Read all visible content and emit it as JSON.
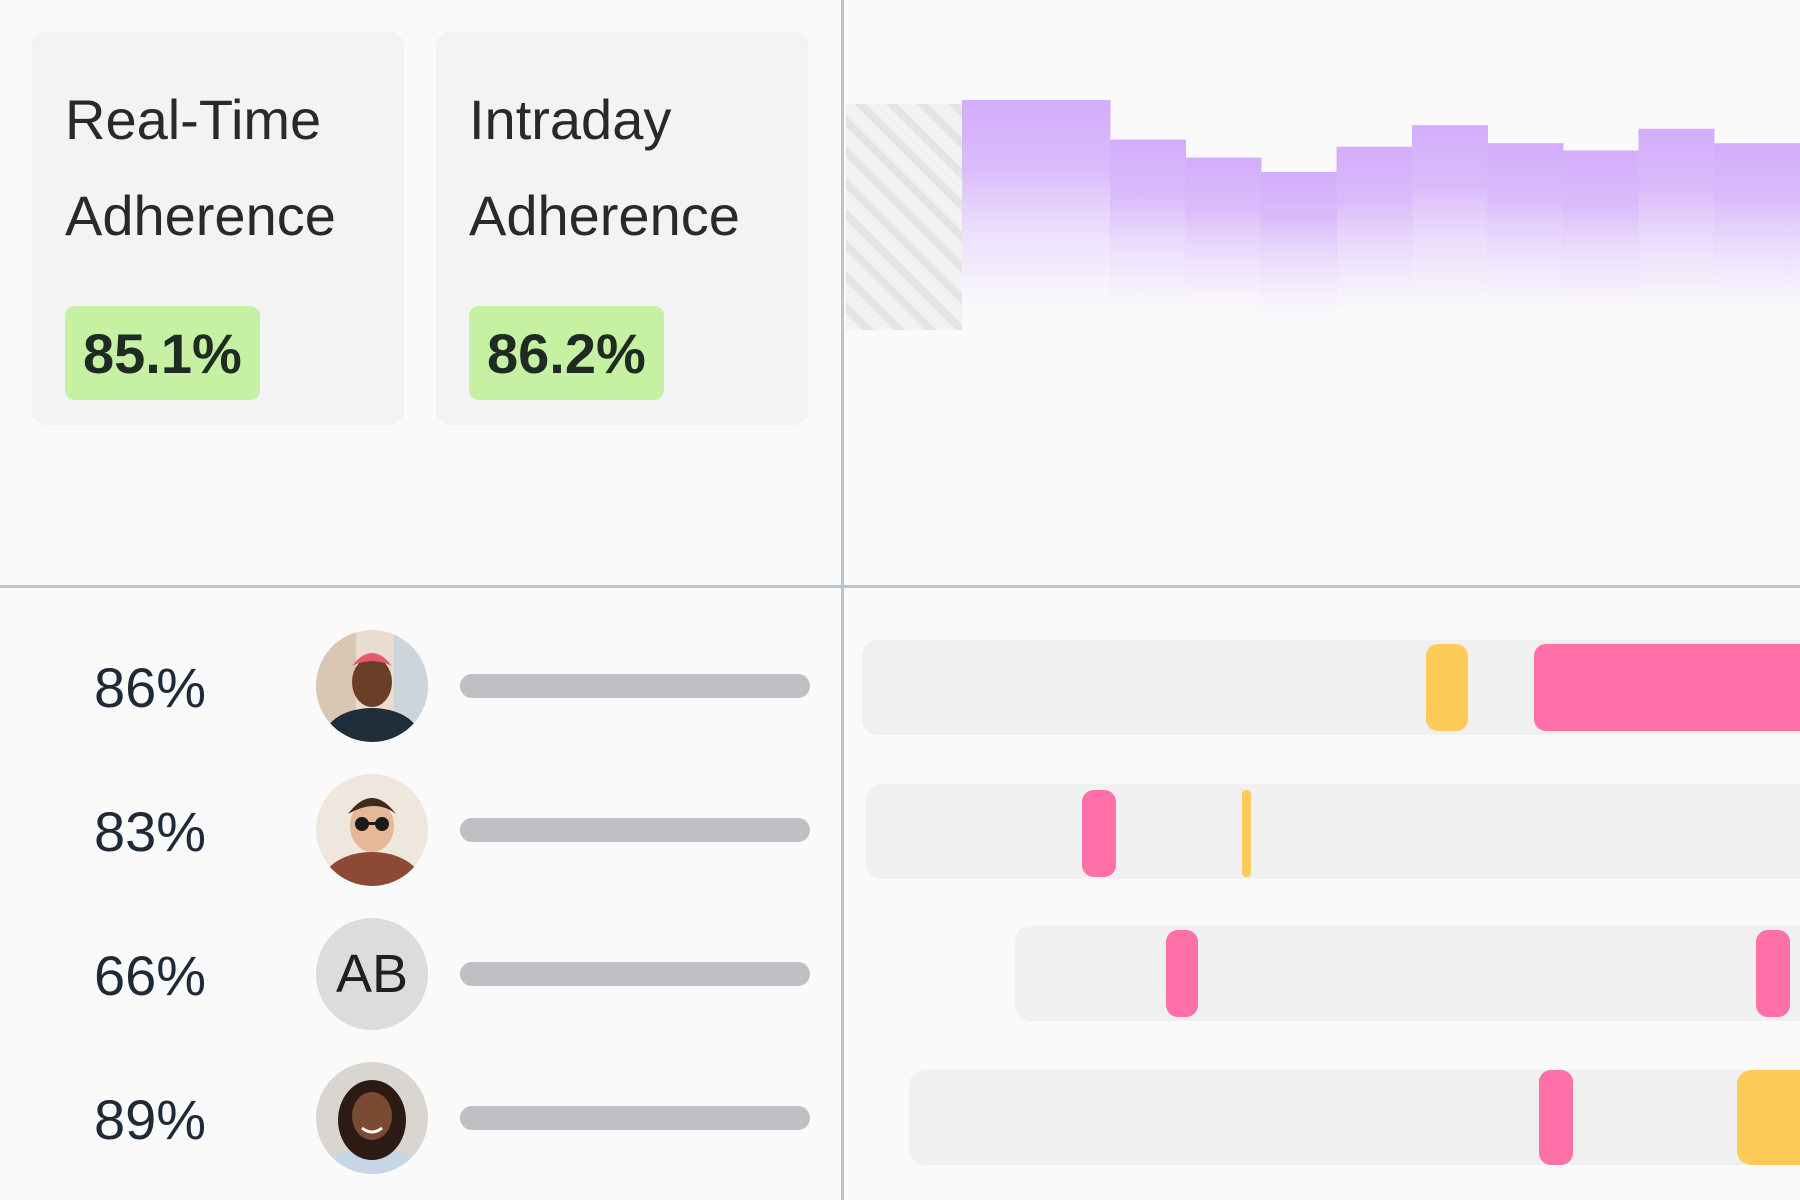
{
  "cards": [
    {
      "title_line1": "Real-Time",
      "title_line2": "Adherence",
      "value": "85.1%"
    },
    {
      "title_line1": "Intraday",
      "title_line2": "Adherence",
      "value": "86.2%"
    }
  ],
  "chart_data": {
    "type": "area",
    "x": [
      0,
      1,
      2,
      3,
      4,
      5,
      6,
      7,
      8,
      9,
      10
    ],
    "values": [
      86,
      75,
      70,
      66,
      73,
      79,
      74,
      72,
      78,
      74,
      74
    ],
    "ylim": [
      0,
      100
    ],
    "fill_color": "#d3adfb",
    "no_data_region": "hatched",
    "grid": false
  },
  "agents": [
    {
      "adherence": "86%",
      "avatar_type": "photo",
      "avatar_icon": "person-photo-icon"
    },
    {
      "adherence": "83%",
      "avatar_type": "photo",
      "avatar_icon": "person-photo-icon"
    },
    {
      "adherence": "66%",
      "avatar_type": "initials",
      "initials": "AB"
    },
    {
      "adherence": "89%",
      "avatar_type": "photo",
      "avatar_icon": "person-photo-icon"
    }
  ],
  "colors": {
    "badge_green": "#c6f1a2",
    "segment_pink": "#ff6fa8",
    "segment_yellow": "#fdcb57",
    "track_gray": "#f0f0f0"
  }
}
